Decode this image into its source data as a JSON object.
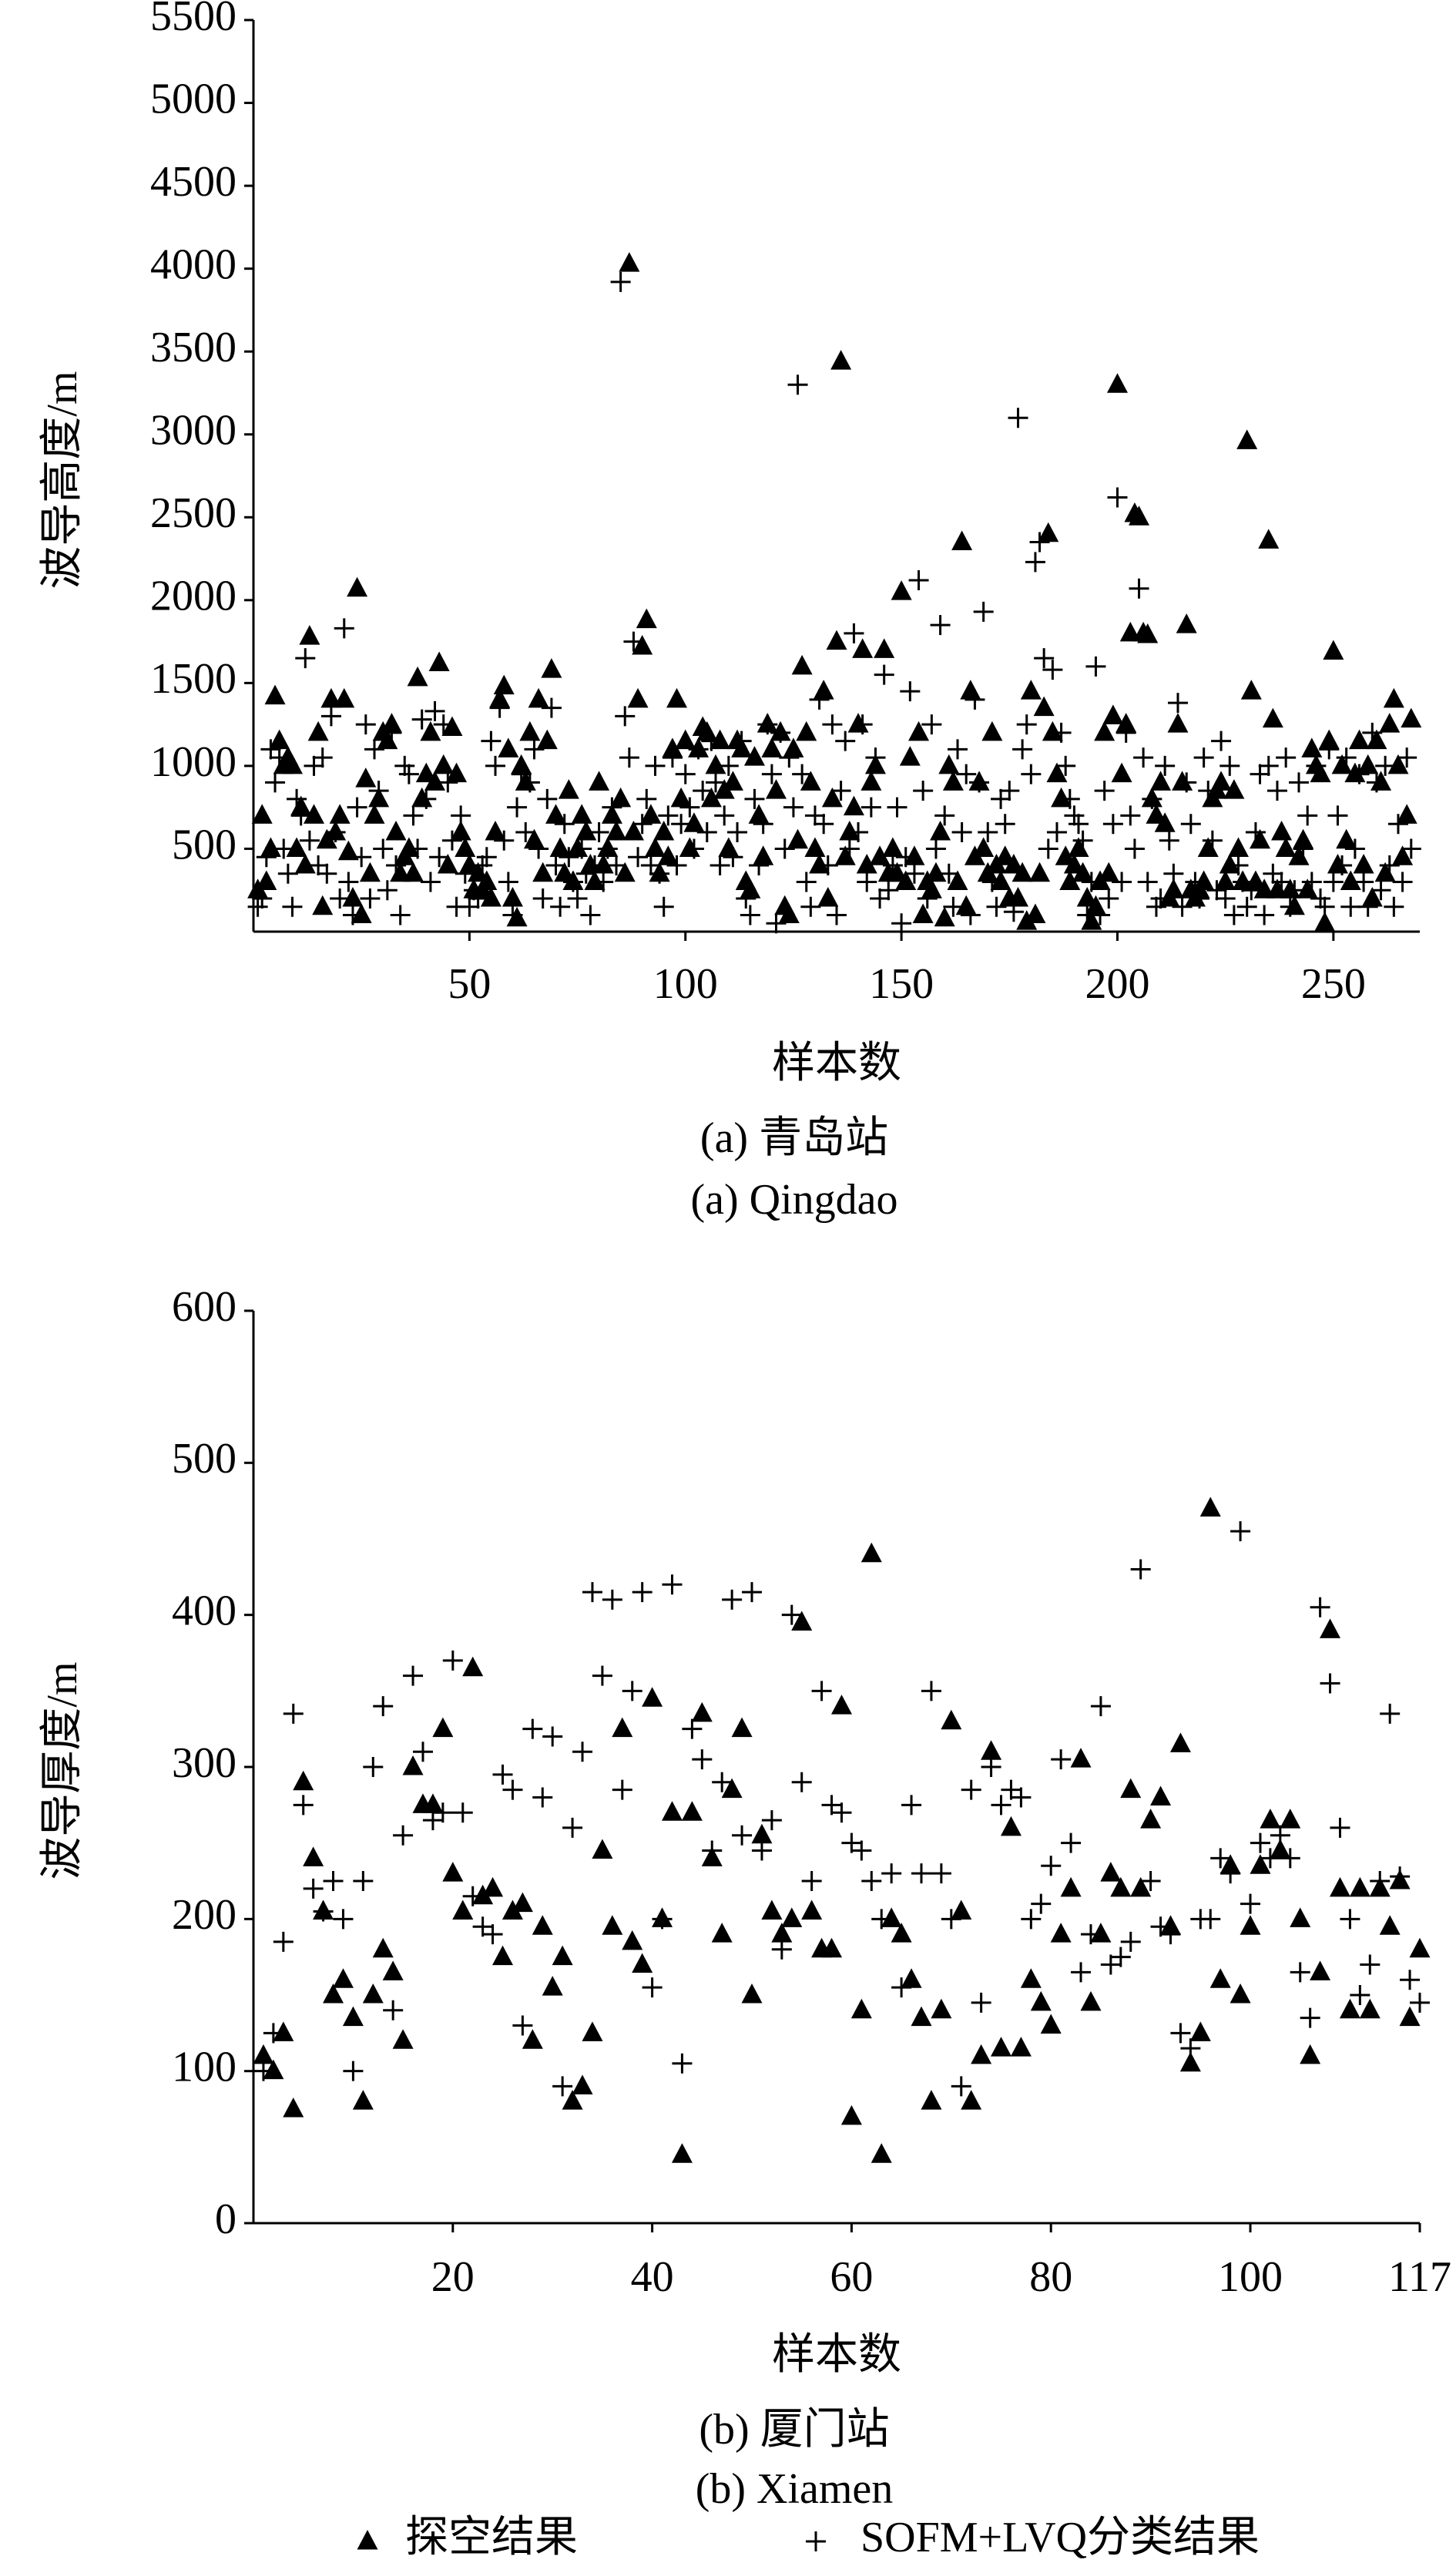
{
  "chart_data": [
    {
      "type": "scatter",
      "y_label": "波导高度/m",
      "x_label": "样本数",
      "caption": [
        "(a) 青岛站",
        "(a) Qingdao"
      ],
      "xlim": [
        0,
        270
      ],
      "xticks": [
        50,
        100,
        150,
        200,
        250
      ],
      "ylim": [
        0,
        5500
      ],
      "yticks": [
        500,
        1000,
        1500,
        2000,
        2500,
        3000,
        3500,
        4000,
        4500,
        5000,
        5500
      ],
      "x": [
        1,
        2,
        3,
        4,
        5,
        6,
        7,
        8,
        9,
        10,
        11,
        12,
        13,
        14,
        15,
        16,
        17,
        18,
        19,
        20,
        21,
        22,
        23,
        24,
        25,
        26,
        27,
        28,
        29,
        30,
        31,
        32,
        33,
        34,
        35,
        36,
        37,
        38,
        39,
        40,
        41,
        42,
        43,
        44,
        45,
        46,
        47,
        48,
        49,
        50,
        51,
        52,
        53,
        54,
        55,
        56,
        57,
        58,
        59,
        60,
        61,
        62,
        63,
        64,
        65,
        66,
        67,
        68,
        69,
        70,
        71,
        72,
        73,
        74,
        75,
        76,
        77,
        78,
        79,
        80,
        81,
        82,
        83,
        84,
        85,
        86,
        87,
        88,
        89,
        90,
        91,
        92,
        93,
        94,
        95,
        96,
        97,
        98,
        99,
        100,
        101,
        102,
        103,
        104,
        105,
        106,
        107,
        108,
        109,
        110,
        111,
        112,
        113,
        114,
        115,
        116,
        117,
        118,
        119,
        120,
        121,
        122,
        123,
        124,
        125,
        126,
        127,
        128,
        129,
        130,
        131,
        132,
        133,
        134,
        135,
        136,
        137,
        138,
        139,
        140,
        141,
        142,
        143,
        144,
        145,
        146,
        147,
        148,
        149,
        150,
        151,
        152,
        153,
        154,
        155,
        156,
        157,
        158,
        159,
        160,
        161,
        162,
        163,
        164,
        165,
        166,
        167,
        168,
        169,
        170,
        171,
        172,
        173,
        174,
        175,
        176,
        177,
        178,
        179,
        180,
        181,
        182,
        183,
        184,
        185,
        186,
        187,
        188,
        189,
        190,
        191,
        192,
        193,
        194,
        195,
        196,
        197,
        198,
        199,
        200,
        201,
        202,
        203,
        204,
        205,
        206,
        207,
        208,
        209,
        210,
        211,
        212,
        213,
        214,
        215,
        216,
        217,
        218,
        219,
        220,
        221,
        222,
        223,
        224,
        225,
        226,
        227,
        228,
        229,
        230,
        231,
        232,
        233,
        234,
        235,
        236,
        237,
        238,
        239,
        240,
        241,
        242,
        243,
        244,
        245,
        246,
        247,
        248,
        249,
        250,
        251,
        252,
        253,
        254,
        255,
        256,
        257,
        258,
        259,
        260,
        261,
        262,
        263,
        264,
        265,
        266,
        267,
        268
      ],
      "series": [
        {
          "marker": "triangle",
          "color": "#000000",
          "values": [
            250,
            700,
            300,
            500,
            1420,
            1150,
            1000,
            1050,
            1000,
            500,
            750,
            400,
            1780,
            700,
            1200,
            150,
            550,
            1400,
            600,
            700,
            1400,
            480,
            200,
            2070,
            100,
            920,
            350,
            700,
            800,
            1200,
            1150,
            1250,
            600,
            350,
            450,
            500,
            350,
            1530,
            800,
            950,
            1200,
            900,
            1620,
            1000,
            400,
            1230,
            950,
            600,
            500,
            400,
            250,
            350,
            250,
            300,
            200,
            600,
            1400,
            1480,
            1100,
            200,
            80,
            1000,
            900,
            1200,
            550,
            1400,
            350,
            1150,
            1580,
            700,
            500,
            350,
            850,
            300,
            500,
            700,
            600,
            400,
            300,
            900,
            400,
            500,
            700,
            600,
            800,
            350,
            4030,
            600,
            1400,
            1720,
            1880,
            700,
            500,
            350,
            600,
            450,
            1100,
            1400,
            800,
            1150,
            500,
            650,
            1100,
            1230,
            1200,
            800,
            1000,
            1150,
            850,
            500,
            900,
            1150,
            1100,
            300,
            250,
            1050,
            700,
            450,
            1250,
            1100,
            850,
            1200,
            150,
            100,
            1100,
            550,
            1600,
            1200,
            900,
            500,
            400,
            1450,
            200,
            800,
            1750,
            3440,
            450,
            600,
            750,
            1250,
            1700,
            400,
            900,
            1000,
            450,
            1700,
            350,
            500,
            350,
            2050,
            300,
            1050,
            450,
            1200,
            100,
            300,
            250,
            350,
            600,
            80,
            1000,
            900,
            300,
            2350,
            150,
            1450,
            450,
            900,
            500,
            350,
            1200,
            400,
            300,
            450,
            200,
            400,
            200,
            350,
            60,
            1450,
            100,
            350,
            1350,
            2400,
            1200,
            950,
            800,
            450,
            300,
            400,
            500,
            350,
            200,
            60,
            150,
            300,
            1200,
            350,
            1300,
            3300,
            950,
            1250,
            1800,
            2520,
            2500,
            1800,
            1790,
            800,
            700,
            900,
            650,
            200,
            250,
            1250,
            900,
            1850,
            250,
            200,
            250,
            300,
            500,
            800,
            850,
            900,
            300,
            400,
            850,
            500,
            300,
            2960,
            1450,
            300,
            550,
            250,
            2360,
            1280,
            250,
            600,
            500,
            250,
            150,
            450,
            550,
            250,
            1100,
            1000,
            950,
            50,
            1150,
            1690,
            400,
            1000,
            550,
            300,
            950,
            1150,
            400,
            1000,
            200,
            1150,
            900,
            350,
            1250,
            1400,
            1000,
            450,
            700,
            1280
          ]
        },
        {
          "marker": "plus",
          "color": "#000000",
          "values": [
            150,
            200,
            450,
            1100,
            900,
            1050,
            500,
            350,
            150,
            800,
            700,
            1650,
            550,
            1000,
            400,
            1050,
            350,
            1300,
            600,
            200,
            1830,
            300,
            100,
            750,
            450,
            1250,
            200,
            1100,
            850,
            500,
            250,
            1200,
            400,
            100,
            1000,
            950,
            700,
            500,
            1280,
            800,
            300,
            1330,
            450,
            1250,
            900,
            550,
            150,
            700,
            350,
            150,
            250,
            200,
            400,
            450,
            1150,
            1000,
            1350,
            550,
            300,
            100,
            750,
            950,
            600,
            900,
            1100,
            500,
            200,
            800,
            1350,
            400,
            150,
            650,
            450,
            300,
            200,
            500,
            350,
            100,
            400,
            600,
            300,
            500,
            750,
            400,
            3920,
            1300,
            1050,
            1750,
            450,
            650,
            800,
            400,
            1000,
            350,
            150,
            700,
            1050,
            400,
            650,
            950,
            750,
            500,
            1100,
            850,
            600,
            1150,
            900,
            400,
            700,
            1000,
            450,
            600,
            1150,
            200,
            100,
            800,
            400,
            650,
            1250,
            950,
            50,
            1200,
            500,
            1050,
            750,
            3300,
            950,
            300,
            150,
            700,
            1400,
            650,
            400,
            1250,
            100,
            850,
            1150,
            500,
            1800,
            600,
            1250,
            300,
            750,
            1050,
            200,
            1550,
            250,
            400,
            750,
            50,
            450,
            1450,
            350,
            2120,
            850,
            200,
            1250,
            500,
            1850,
            700,
            350,
            150,
            1100,
            600,
            950,
            100,
            1400,
            900,
            1930,
            600,
            300,
            150,
            800,
            650,
            850,
            120,
            3100,
            1100,
            1250,
            950,
            2230,
            2350,
            1650,
            500,
            1580,
            600,
            1200,
            1000,
            800,
            700,
            650,
            550,
            100,
            300,
            1600,
            100,
            850,
            200,
            650,
            2620,
            300,
            1200,
            700,
            500,
            2070,
            1050,
            300,
            800,
            150,
            200,
            1000,
            550,
            350,
            1380,
            150,
            900,
            650,
            300,
            200,
            1050,
            850,
            550,
            250,
            1150,
            200,
            1000,
            100,
            400,
            300,
            150,
            250,
            600,
            950,
            100,
            1000,
            350,
            850,
            300,
            1050,
            150,
            250,
            900,
            500,
            700,
            300,
            1000,
            200,
            150,
            1100,
            300,
            700,
            400,
            1050,
            150,
            500,
            950,
            300,
            150,
            1200,
            900,
            250,
            1000,
            400,
            150,
            650,
            300,
            1050,
            500
          ]
        }
      ]
    },
    {
      "type": "scatter",
      "y_label": "波导厚度/m",
      "x_label": "样本数",
      "caption": [
        "(b) 厦门站",
        "(b) Xiamen"
      ],
      "xlim": [
        0,
        117
      ],
      "xticks": [
        20,
        40,
        60,
        80,
        100,
        117
      ],
      "ylim": [
        0,
        600
      ],
      "yticks": [
        0,
        100,
        200,
        300,
        400,
        500,
        600
      ],
      "x": [
        1,
        2,
        3,
        4,
        5,
        6,
        7,
        8,
        9,
        10,
        11,
        12,
        13,
        14,
        15,
        16,
        17,
        18,
        19,
        20,
        21,
        22,
        23,
        24,
        25,
        26,
        27,
        28,
        29,
        30,
        31,
        32,
        33,
        34,
        35,
        36,
        37,
        38,
        39,
        40,
        41,
        42,
        43,
        44,
        45,
        46,
        47,
        48,
        49,
        50,
        51,
        52,
        53,
        54,
        55,
        56,
        57,
        58,
        59,
        60,
        61,
        62,
        63,
        64,
        65,
        66,
        67,
        68,
        69,
        70,
        71,
        72,
        73,
        74,
        75,
        76,
        77,
        78,
        79,
        80,
        81,
        82,
        83,
        84,
        85,
        86,
        87,
        88,
        89,
        90,
        91,
        92,
        93,
        94,
        95,
        96,
        97,
        98,
        99,
        100,
        101,
        102,
        103,
        104,
        105,
        106,
        107,
        108,
        109,
        110,
        111,
        112,
        113,
        114,
        115,
        116,
        117
      ],
      "legend": "bottom",
      "series": [
        {
          "name": "探空结果",
          "marker": "triangle",
          "color": "#000000",
          "values": [
            110,
            100,
            125,
            75,
            290,
            240,
            205,
            150,
            160,
            135,
            80,
            150,
            180,
            165,
            120,
            300,
            275,
            275,
            325,
            230,
            205,
            365,
            215,
            220,
            175,
            205,
            210,
            120,
            195,
            155,
            175,
            80,
            90,
            125,
            245,
            195,
            325,
            185,
            170,
            345,
            200,
            270,
            45,
            270,
            335,
            240,
            190,
            285,
            325,
            150,
            255,
            205,
            190,
            200,
            395,
            205,
            180,
            180,
            340,
            70,
            140,
            440,
            45,
            200,
            190,
            160,
            135,
            80,
            140,
            330,
            205,
            80,
            110,
            310,
            115,
            260,
            115,
            160,
            145,
            130,
            190,
            220,
            305,
            145,
            190,
            230,
            220,
            285,
            220,
            265,
            280,
            195,
            315,
            105,
            125,
            470,
            160,
            235,
            150,
            195,
            235,
            265,
            245,
            265,
            200,
            110,
            165,
            390,
            220,
            140,
            220,
            140,
            220,
            195,
            225,
            135,
            180
          ]
        },
        {
          "name": "SOFM+LVQ分类结果",
          "marker": "plus",
          "color": "#000000",
          "values": [
            100,
            125,
            185,
            335,
            275,
            220,
            205,
            225,
            200,
            100,
            225,
            300,
            340,
            140,
            255,
            360,
            310,
            265,
            270,
            370,
            270,
            215,
            195,
            190,
            295,
            285,
            130,
            325,
            280,
            320,
            90,
            260,
            310,
            415,
            360,
            410,
            285,
            350,
            415,
            155,
            200,
            420,
            105,
            325,
            305,
            245,
            290,
            410,
            255,
            415,
            245,
            265,
            180,
            400,
            290,
            225,
            350,
            275,
            270,
            250,
            245,
            225,
            200,
            230,
            155,
            275,
            230,
            350,
            230,
            200,
            90,
            285,
            145,
            300,
            275,
            285,
            280,
            200,
            210,
            235,
            305,
            250,
            165,
            190,
            340,
            170,
            175,
            185,
            430,
            225,
            195,
            190,
            125,
            115,
            200,
            200,
            240,
            230,
            455,
            210,
            250,
            240,
            255,
            240,
            165,
            135,
            405,
            355,
            260,
            200,
            150,
            170,
            225,
            335,
            228,
            160,
            145
          ]
        }
      ]
    }
  ]
}
